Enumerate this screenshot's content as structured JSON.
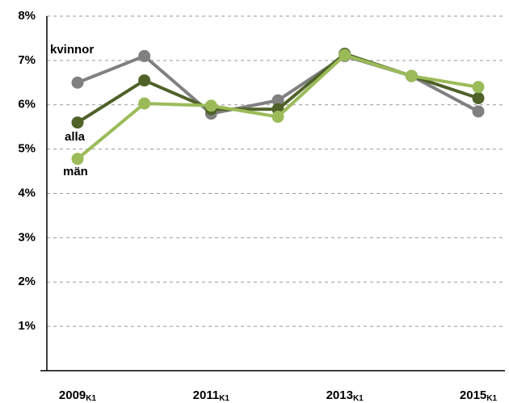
{
  "chart_data": {
    "type": "line",
    "categories": [
      "2009K1",
      null,
      "2011K1",
      null,
      "2013K1",
      null,
      "2015K1"
    ],
    "series": [
      {
        "name": "kvinnor",
        "color": "#808080",
        "values": [
          6.5,
          7.1,
          5.8,
          6.1,
          7.1,
          6.65,
          5.85
        ]
      },
      {
        "name": "alla",
        "color": "#4f6228",
        "values": [
          5.6,
          6.55,
          5.9,
          5.9,
          7.15,
          6.65,
          6.15
        ]
      },
      {
        "name": "män",
        "color": "#9bbb59",
        "values": [
          4.78,
          6.03,
          5.98,
          5.73,
          7.12,
          6.65,
          6.4
        ]
      }
    ],
    "ylim": [
      0,
      8
    ],
    "yticks": [
      {
        "value": 1,
        "label": "1%"
      },
      {
        "value": 2,
        "label": "2%"
      },
      {
        "value": 3,
        "label": "3%"
      },
      {
        "value": 4,
        "label": "4%"
      },
      {
        "value": 5,
        "label": "5%"
      },
      {
        "value": 6,
        "label": "6%"
      },
      {
        "value": 7,
        "label": "7%"
      },
      {
        "value": 8,
        "label": "8%"
      }
    ],
    "grid": true
  }
}
